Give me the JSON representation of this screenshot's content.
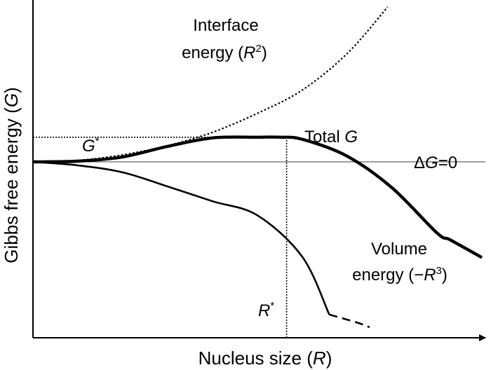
{
  "chart_data": {
    "type": "line",
    "xlabel": {
      "main": "Nucleus size (",
      "var": "R",
      "tail": ")"
    },
    "ylabel": {
      "main": "Gibbs free energy (",
      "var": "G",
      "tail": ")"
    },
    "xlim": [
      0,
      10
    ],
    "ylim": [
      -2.5,
      2.3
    ],
    "series": [
      {
        "key": "interface",
        "x": [
          0,
          1,
          2,
          3,
          4,
          5,
          6,
          7,
          7.9
        ],
        "y": [
          0,
          0.02,
          0.1,
          0.23,
          0.42,
          0.69,
          1.02,
          1.54,
          2.2
        ]
      },
      {
        "key": "total",
        "x": [
          0,
          1,
          2,
          3,
          4,
          5,
          5.5,
          6,
          7,
          8,
          9,
          9.3,
          10
        ],
        "y": [
          0,
          0.01,
          0.07,
          0.22,
          0.34,
          0.35,
          0.35,
          0.32,
          0.08,
          -0.37,
          -1.01,
          -1.11,
          -1.36
        ]
      },
      {
        "key": "volume",
        "x": [
          0,
          1,
          2,
          3,
          4,
          5,
          6,
          6.6
        ],
        "y": [
          0,
          -0.05,
          -0.15,
          -0.35,
          -0.56,
          -0.76,
          -1.35,
          -2.17
        ],
        "dash_from": 6.6
      },
      {
        "key": "volume-tail",
        "x": [
          6.6,
          7.2,
          7.5
        ],
        "y": [
          -2.17,
          -2.28,
          -2.35
        ]
      }
    ],
    "reference_lines": [
      {
        "key": "delta-g-zero",
        "y": 0
      },
      {
        "key": "g-star",
        "y": 0.35,
        "x_to": 5.65
      },
      {
        "key": "r-star",
        "x": 5.65
      }
    ],
    "annotations": {
      "interface": {
        "line1": "Interface",
        "line2": "energy (",
        "var": "R",
        "sup": "2",
        "tail": ")"
      },
      "total": {
        "text": "Total ",
        "var": "G"
      },
      "delta_g": {
        "pre": "Δ",
        "var": "G",
        "tail": "=0"
      },
      "volume": {
        "line1": "Volume",
        "line2": "energy (−",
        "var": "R",
        "sup": "3",
        "tail": ")"
      },
      "g_star": {
        "var": "G",
        "sup": "*"
      },
      "r_star": {
        "var": "R",
        "sup": "*"
      }
    }
  }
}
